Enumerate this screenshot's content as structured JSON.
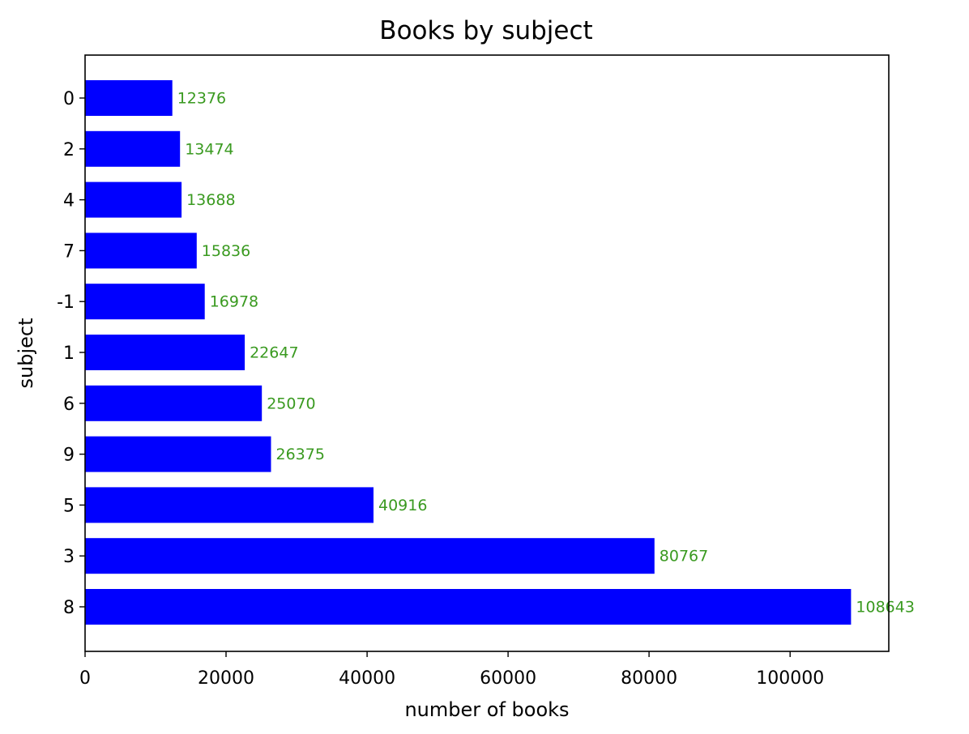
{
  "chart_data": {
    "type": "bar",
    "orientation": "horizontal",
    "title": "Books by subject",
    "xlabel": "number of books",
    "ylabel": "subject",
    "categories": [
      "0",
      "2",
      "4",
      "7",
      "-1",
      "1",
      "6",
      "9",
      "5",
      "3",
      "8"
    ],
    "values": [
      12376,
      13474,
      13688,
      15836,
      16978,
      22647,
      25070,
      26375,
      40916,
      80767,
      108643
    ],
    "value_labels": [
      "12376",
      "13474",
      "13688",
      "15836",
      "16978",
      "22647",
      "25070",
      "26375",
      "40916",
      "80767",
      "108643"
    ],
    "xlim": [
      0,
      114000
    ],
    "xticks": [
      0,
      20000,
      40000,
      60000,
      80000,
      100000
    ],
    "xtick_labels": [
      "0",
      "20000",
      "40000",
      "60000",
      "80000",
      "100000"
    ],
    "grid": false,
    "legend": false,
    "bar_color": "#0000ff",
    "data_label_color": "#3a9a20",
    "axis_color": "#000000"
  }
}
